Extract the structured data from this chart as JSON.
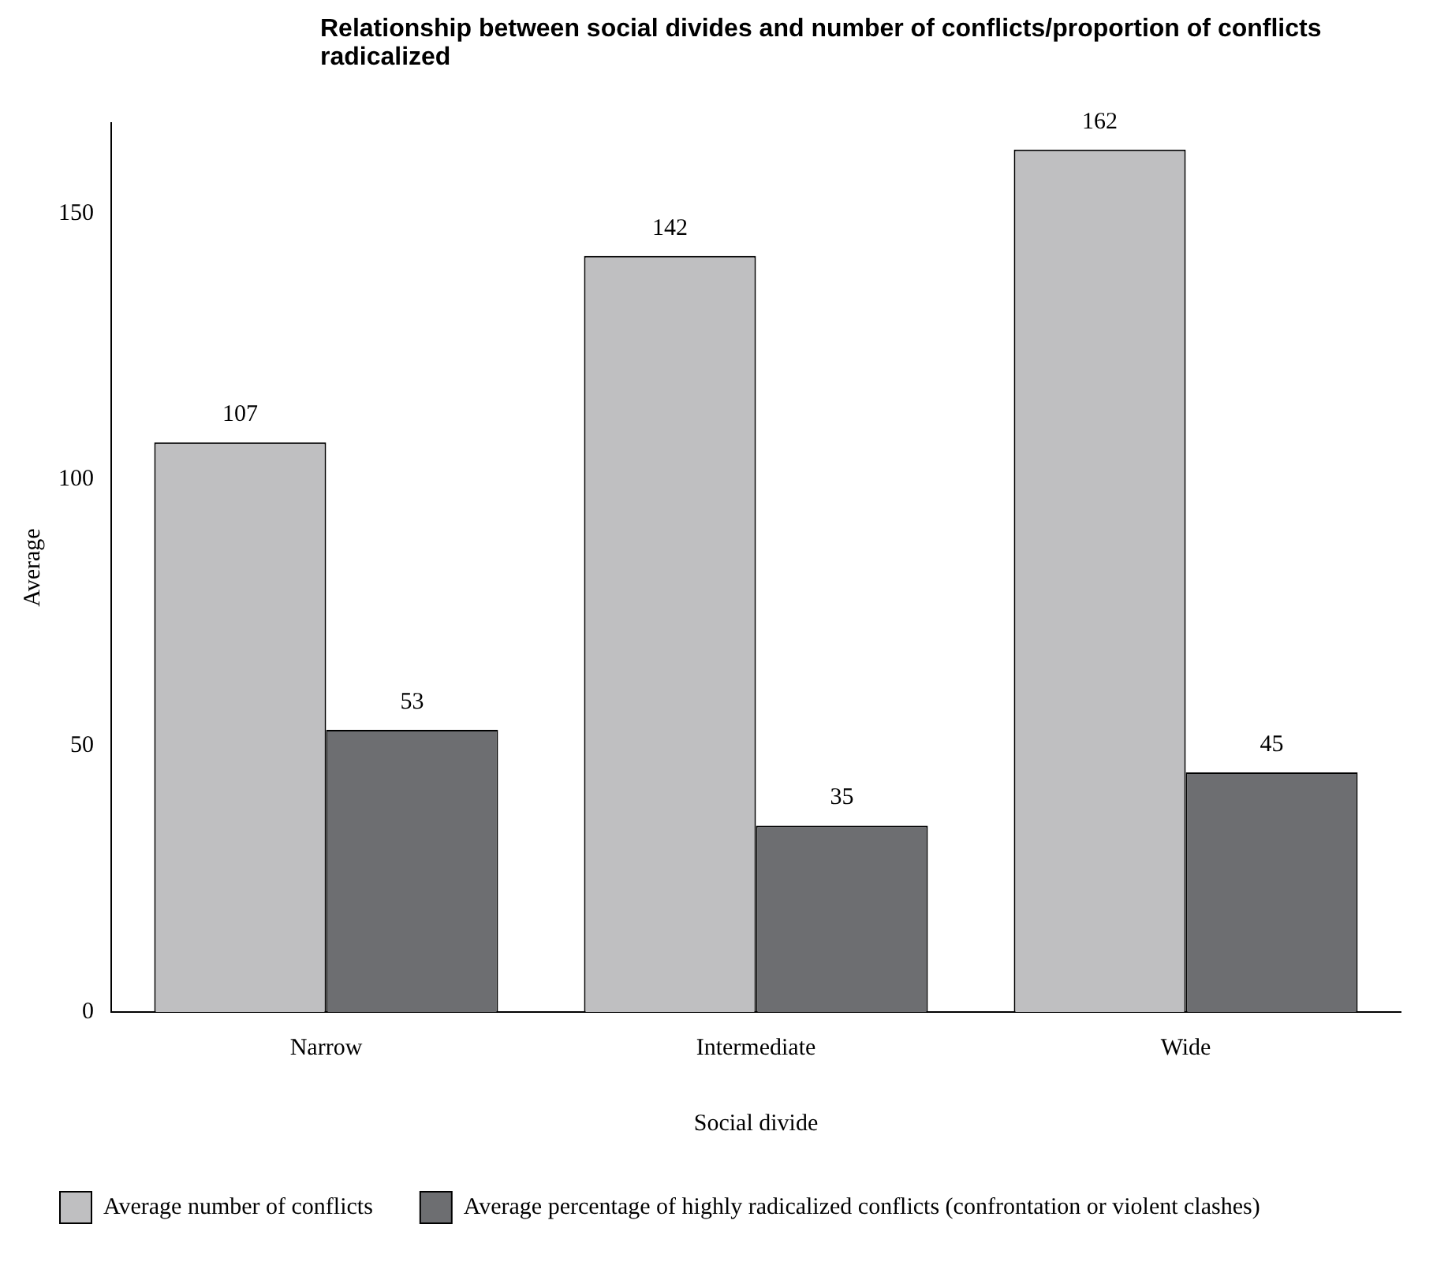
{
  "chart_data": {
    "type": "bar",
    "title": "Relationship between social divides and number of conflicts/proportion of conflicts radicalized",
    "xlabel": "Social divide",
    "ylabel": "Average",
    "categories": [
      "Narrow",
      "Intermediate",
      "Wide"
    ],
    "series": [
      {
        "name": "Average number of conflicts",
        "color": "#bfbfc1",
        "values": [
          107,
          142,
          162
        ]
      },
      {
        "name": "Average percentage of highly radicalized conflicts (confrontation or violent clashes)",
        "color": "#6d6e71",
        "values": [
          53,
          35,
          45
        ]
      }
    ],
    "ylim": [
      0,
      167
    ],
    "yticks": [
      0,
      50,
      100,
      150
    ],
    "grid": false,
    "legend": "bottom",
    "data_labels": true
  }
}
